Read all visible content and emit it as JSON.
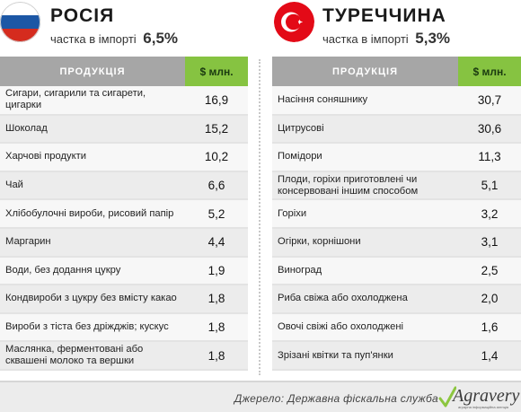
{
  "left": {
    "country": "РОСІЯ",
    "share_label": "частка в імпорті",
    "share_value": "6,5%",
    "flag_icon": "russia-flag-icon",
    "col_product": "ПРОДУКЦІЯ",
    "col_value": "$ млн.",
    "rows": [
      {
        "name": "Сигари, сигарили та сигарети, цигарки",
        "value": "16,9"
      },
      {
        "name": "Шоколад",
        "value": "15,2"
      },
      {
        "name": "Харчові продукти",
        "value": "10,2"
      },
      {
        "name": "Чай",
        "value": "6,6"
      },
      {
        "name": "Хлібобулочні вироби, рисовий папір",
        "value": "5,2"
      },
      {
        "name": "Маргарин",
        "value": "4,4"
      },
      {
        "name": "Води, без додання цукру",
        "value": "1,9"
      },
      {
        "name": "Кондвироби з цукру без вмісту какао",
        "value": "1,8"
      },
      {
        "name": "Вироби з тіста без дріжджів; кускус",
        "value": "1,8"
      },
      {
        "name": "Маслянка, ферментовані або сквашені молоко та вершки",
        "value": "1,8"
      }
    ]
  },
  "right": {
    "country": "ТУРЕЧЧИНА",
    "share_label": "частка в імпорті",
    "share_value": "5,3%",
    "flag_icon": "turkey-flag-icon",
    "col_product": "ПРОДУКЦІЯ",
    "col_value": "$ млн.",
    "rows": [
      {
        "name": "Насіння соняшнику",
        "value": "30,7"
      },
      {
        "name": "Цитрусові",
        "value": "30,6"
      },
      {
        "name": "Помідори",
        "value": "11,3"
      },
      {
        "name": "Плоди, горіхи приготовлені чи консервовані іншим способом",
        "value": "5,1"
      },
      {
        "name": "Горіхи",
        "value": "3,2"
      },
      {
        "name": "Огірки, корнішони",
        "value": "3,1"
      },
      {
        "name": "Виноград",
        "value": "2,5"
      },
      {
        "name": "Риба свіжа або охолоджена",
        "value": "2,0"
      },
      {
        "name": "Овочі свіжі або охолоджені",
        "value": "1,6"
      },
      {
        "name": "Зрізані квітки та пуп'янки",
        "value": "1,4"
      }
    ]
  },
  "footer": {
    "source": "Джерело: Державна фіскальна служба",
    "logo_text": "Agravery",
    "logo_sub": "аграрна інформаційна агенція"
  },
  "colors": {
    "header_gray": "#a6a6a6",
    "header_green": "#86c341",
    "russia_white": "#ffffff",
    "russia_blue": "#1c57a5",
    "russia_red": "#d52b1e",
    "turkey_red": "#e30a17"
  }
}
